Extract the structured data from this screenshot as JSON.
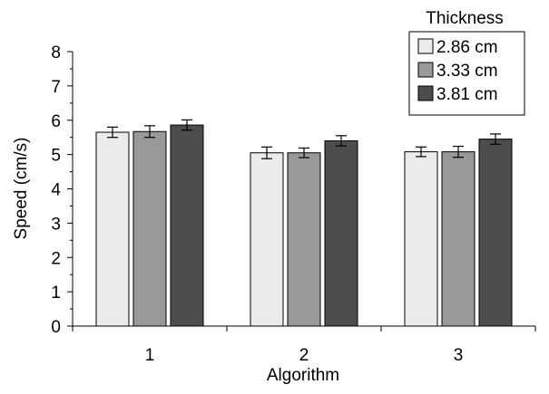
{
  "chart_data": {
    "type": "bar",
    "title": "",
    "xlabel": "Algorithm",
    "ylabel": "Speed (cm/s)",
    "categories": [
      "1",
      "2",
      "3"
    ],
    "ylim": [
      0,
      8
    ],
    "yticks": [
      0,
      1,
      2,
      3,
      4,
      5,
      6,
      7,
      8
    ],
    "yticks_minor_step": 0.5,
    "grid": false,
    "error_bars": true,
    "legend_title": "Thickness",
    "legend_position": "top-right",
    "series": [
      {
        "name": "2.86 cm",
        "color": "#ebebeb",
        "values": [
          5.65,
          5.05,
          5.08
        ],
        "errors": [
          0.15,
          0.17,
          0.14
        ]
      },
      {
        "name": "3.33 cm",
        "color": "#999999",
        "values": [
          5.67,
          5.05,
          5.08
        ],
        "errors": [
          0.17,
          0.14,
          0.16
        ]
      },
      {
        "name": "3.81 cm",
        "color": "#4d4d4d",
        "values": [
          5.86,
          5.4,
          5.45
        ],
        "errors": [
          0.15,
          0.15,
          0.15
        ]
      }
    ]
  }
}
